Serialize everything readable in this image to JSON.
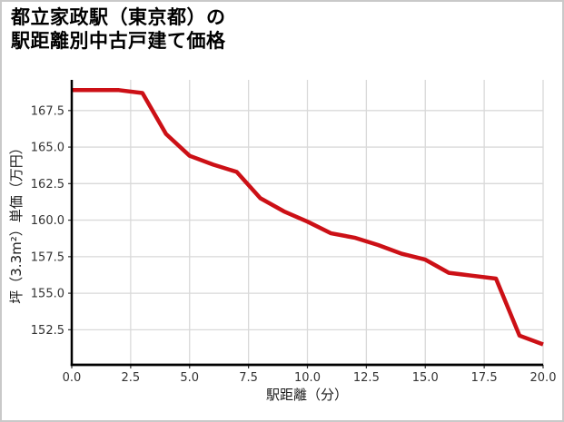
{
  "title": {
    "line1": "都立家政駅（東京都）の",
    "line2": "駅距離別中古戸建て価格"
  },
  "chart_data": {
    "type": "line",
    "title": "都立家政駅（東京都）の駅距離別中古戸建て価格",
    "xlabel": "駅距離（分）",
    "ylabel": "坪（3.3m²）単価（万円）",
    "x": [
      0,
      1,
      2,
      3,
      4,
      5,
      6,
      7,
      8,
      9,
      10,
      11,
      12,
      13,
      14,
      15,
      16,
      17,
      18,
      19,
      20
    ],
    "values": [
      168.9,
      168.9,
      168.9,
      168.7,
      165.9,
      164.4,
      163.8,
      163.3,
      161.5,
      160.6,
      159.9,
      159.1,
      158.8,
      158.3,
      157.7,
      157.3,
      156.4,
      156.2,
      156.0,
      152.1,
      151.5
    ],
    "x_ticks": {
      "values": [
        0,
        2.5,
        5,
        7.5,
        10,
        12.5,
        15,
        17.5,
        20
      ],
      "labels": [
        "0.0",
        "2.5",
        "5.0",
        "7.5",
        "10.0",
        "12.5",
        "15.0",
        "17.5",
        "20.0"
      ]
    },
    "y_ticks": {
      "values": [
        167.5,
        165.0,
        162.5,
        160.0,
        157.5,
        155.0,
        152.5
      ],
      "labels": [
        "167.5",
        "165.0",
        "162.5",
        "160.0",
        "157.5",
        "155.0",
        "152.5"
      ]
    },
    "xlim": [
      0,
      20
    ],
    "ylim": [
      150.1,
      169.6
    ],
    "grid": true,
    "legend": false,
    "line_color": "#cc1016",
    "grid_color": "#d9d9d9",
    "axis_color": "#000000",
    "tick_color": "#333333"
  }
}
